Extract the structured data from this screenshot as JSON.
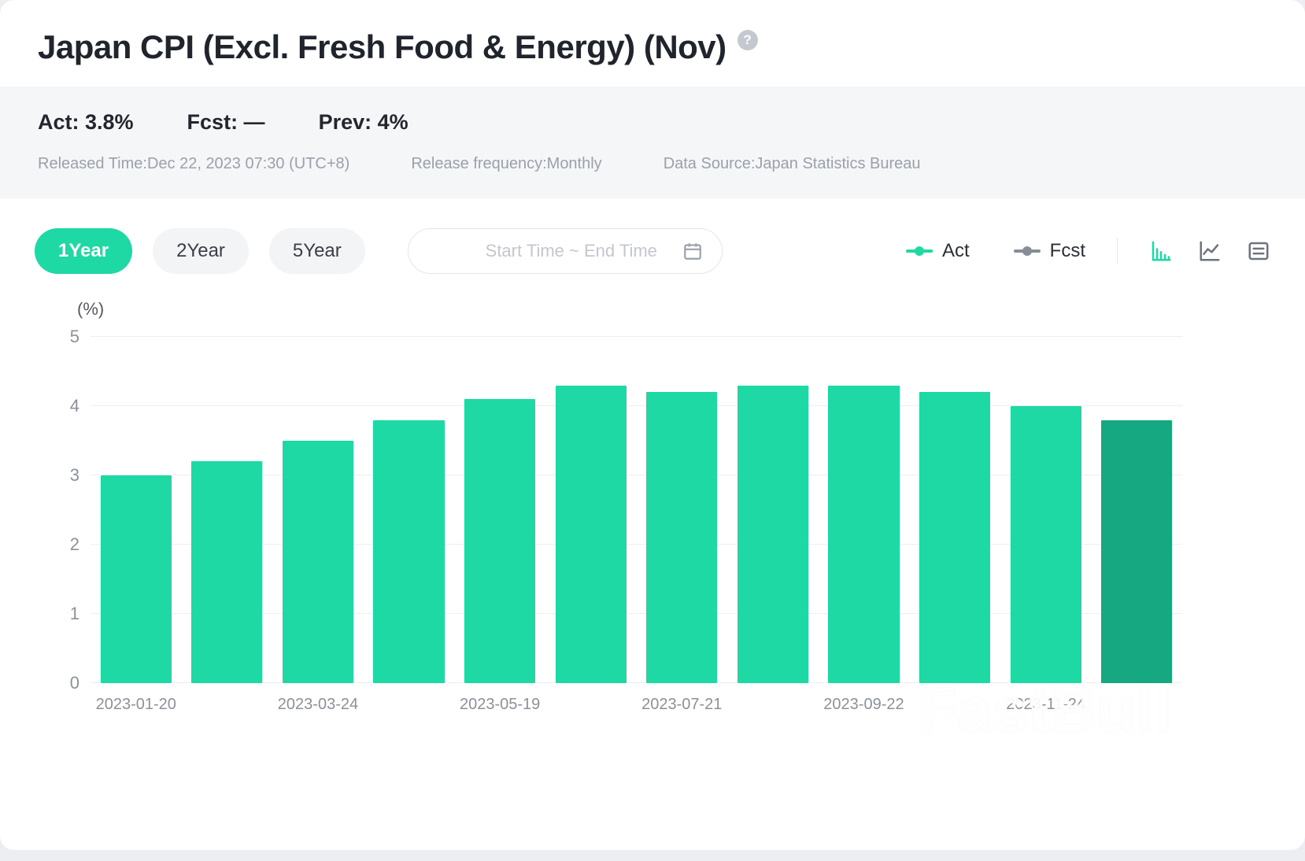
{
  "header": {
    "title": "Japan CPI (Excl. Fresh Food & Energy) (Nov)",
    "help_glyph": "?"
  },
  "stats": {
    "act": "Act: 3.8%",
    "fcst": "Fcst: —",
    "prev": "Prev: 4%",
    "released_time": "Released Time:Dec 22, 2023 07:30 (UTC+8)",
    "frequency": "Release frequency:Monthly",
    "source": "Data Source:Japan Statistics Bureau"
  },
  "controls": {
    "ranges": [
      {
        "label": "1Year",
        "active": true
      },
      {
        "label": "2Year",
        "active": false
      },
      {
        "label": "5Year",
        "active": false
      }
    ],
    "date_placeholder": "Start Time ~ End Time",
    "legend": [
      {
        "label": "Act",
        "color": "#1fd9a5"
      },
      {
        "label": "Fcst",
        "color": "#868d96"
      }
    ]
  },
  "colors": {
    "accent_green": "#1fd9a5",
    "latest_bar_green": "#16a880",
    "stats_background": "#f5f6f8",
    "muted_text": "#9aa1a9"
  },
  "watermark": "FastBull",
  "chart_data": {
    "type": "bar",
    "title": "Japan CPI (Excl. Fresh Food & Energy) (Nov)",
    "ylabel": "(%)",
    "ylim": [
      0,
      5
    ],
    "yticks": [
      0,
      1,
      2,
      3,
      4,
      5
    ],
    "values": [
      3.0,
      3.2,
      3.5,
      3.8,
      4.1,
      4.3,
      4.2,
      4.3,
      4.3,
      4.2,
      4.0,
      3.8
    ],
    "x_ticks": [
      {
        "index": 0,
        "label": "2023-01-20"
      },
      {
        "index": 2,
        "label": "2023-03-24"
      },
      {
        "index": 4,
        "label": "2023-05-19"
      },
      {
        "index": 6,
        "label": "2023-07-21"
      },
      {
        "index": 8,
        "label": "2023-09-22"
      },
      {
        "index": 10,
        "label": "2023-11-24"
      }
    ],
    "grid": true,
    "legend_position": "top-right",
    "bar_color": "#1fd9a5",
    "latest_bar_color": "#16a880"
  }
}
